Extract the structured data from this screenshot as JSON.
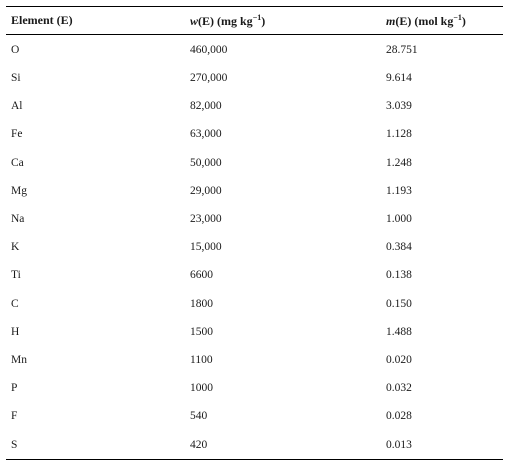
{
  "table": {
    "headers": {
      "element": "Element (E)",
      "w_symbol": "w",
      "w_rest": "(E) (mg kg",
      "w_exp": "−1",
      "w_close": ")",
      "m_symbol": "m",
      "m_rest": "(E) (mol kg",
      "m_exp": "−1",
      "m_close": ")"
    },
    "rows": [
      {
        "element": "O",
        "w": "460,000",
        "m": "28.751"
      },
      {
        "element": "Si",
        "w": "270,000",
        "m": "9.614"
      },
      {
        "element": "Al",
        "w": "82,000",
        "m": "3.039"
      },
      {
        "element": "Fe",
        "w": "63,000",
        "m": "1.128"
      },
      {
        "element": "Ca",
        "w": "50,000",
        "m": "1.248"
      },
      {
        "element": "Mg",
        "w": "29,000",
        "m": "1.193"
      },
      {
        "element": "Na",
        "w": "23,000",
        "m": "1.000"
      },
      {
        "element": "K",
        "w": "15,000",
        "m": "0.384"
      },
      {
        "element": "Ti",
        "w": "6600",
        "m": "0.138"
      },
      {
        "element": "C",
        "w": "1800",
        "m": "0.150"
      },
      {
        "element": "H",
        "w": "1500",
        "m": "1.488"
      },
      {
        "element": "Mn",
        "w": "1100",
        "m": "0.020"
      },
      {
        "element": "P",
        "w": "1000",
        "m": "0.032"
      },
      {
        "element": "F",
        "w": "540",
        "m": "0.028"
      },
      {
        "element": "S",
        "w": "420",
        "m": "0.013"
      }
    ]
  }
}
